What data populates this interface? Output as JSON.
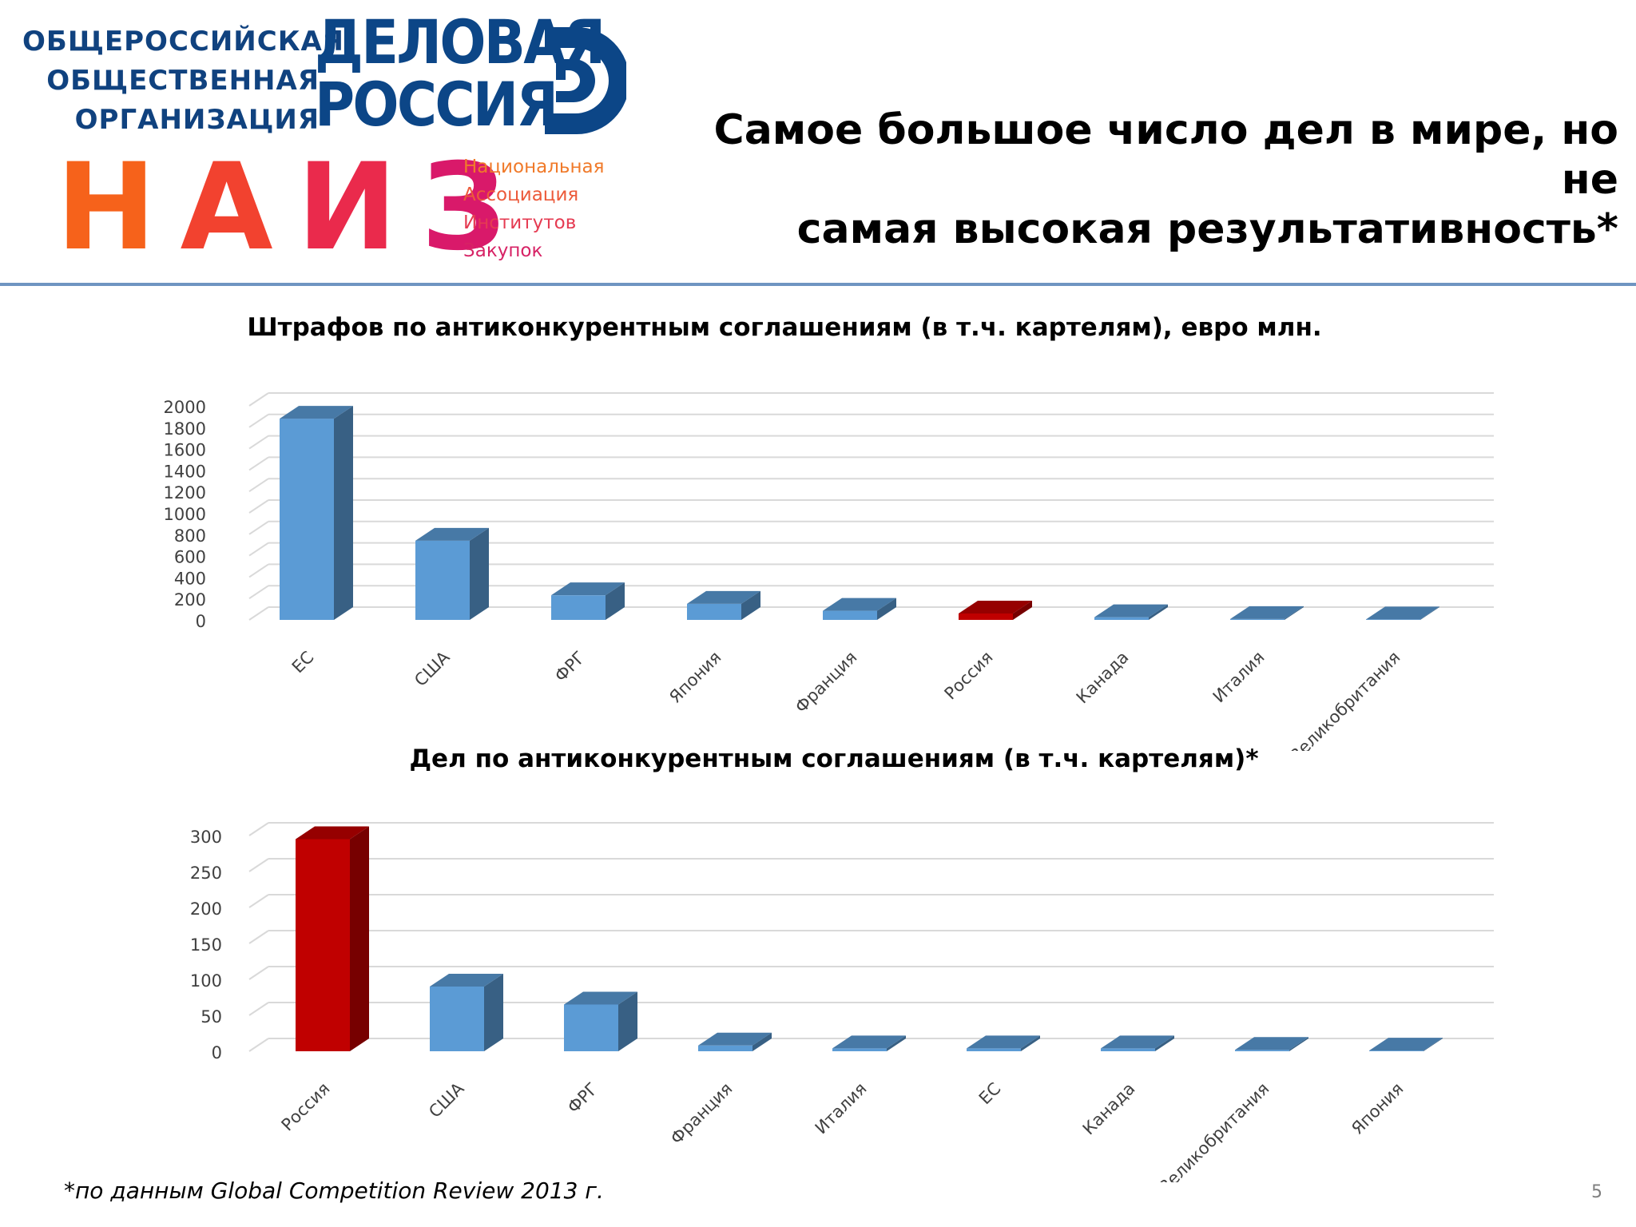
{
  "header": {
    "logo_org_lines": [
      "ОБЩЕРОССИЙСКАЯ",
      "ОБЩЕСТВЕННАЯ",
      "ОРГАНИЗАЦИЯ"
    ],
    "logo_dr_lines": [
      "ДЕЛОВАЯ",
      "РОССИЯ"
    ],
    "logo_naiz_letters": [
      "Н",
      "А",
      "И",
      "З"
    ],
    "logo_naiz_colors": [
      "#f6621b",
      "#f2422f",
      "#ea2a4c",
      "#d9196a"
    ],
    "logo_naiz_sub_lines": [
      "Национальная",
      "Ассоциация",
      "Институтов",
      "Закупок"
    ],
    "logo_naiz_sub_colors": [
      "#f07a2a",
      "#ec5a3a",
      "#e53b52",
      "#d72265"
    ],
    "brand_blue": "#0c4687",
    "title_lines": [
      "Самое большое число дел в мире, но не",
      "самая высокая результативность*"
    ]
  },
  "chart_data": [
    {
      "type": "bar",
      "title": "Штрафов по антиконкурентным соглашениям (в т.ч. картелям), евро млн.",
      "categories": [
        "ЕС",
        "США",
        "ФРГ",
        "Япония",
        "Франция",
        "Россия",
        "Канада",
        "Италия",
        "Великобритания"
      ],
      "values": [
        1880,
        740,
        230,
        150,
        85,
        60,
        25,
        8,
        5
      ],
      "highlight": [
        5
      ],
      "ylim": [
        0,
        2000
      ],
      "yticks": [
        0,
        200,
        400,
        600,
        800,
        1000,
        1200,
        1400,
        1600,
        1800,
        2000
      ],
      "grid": true,
      "style": "3d-column",
      "colors": {
        "bar": "#5b9bd5",
        "highlight": "#c00000"
      }
    },
    {
      "type": "bar",
      "title": "Дел по антиконкурентным соглашениям (в т.ч. картелям)*",
      "categories": [
        "Россия",
        "США",
        "ФРГ",
        "Франция",
        "Италия",
        "ЕС",
        "Канада",
        "Великобритания",
        "Япония"
      ],
      "values": [
        295,
        90,
        65,
        8,
        4,
        4,
        4,
        2,
        1
      ],
      "highlight": [
        0
      ],
      "ylim": [
        0,
        300
      ],
      "yticks": [
        0,
        50,
        100,
        150,
        200,
        250,
        300
      ],
      "grid": true,
      "style": "3d-column",
      "colors": {
        "bar": "#5b9bd5",
        "highlight": "#c00000"
      }
    }
  ],
  "footnote": "*по данным Global Competition Review 2013 г.",
  "page_number": "5"
}
